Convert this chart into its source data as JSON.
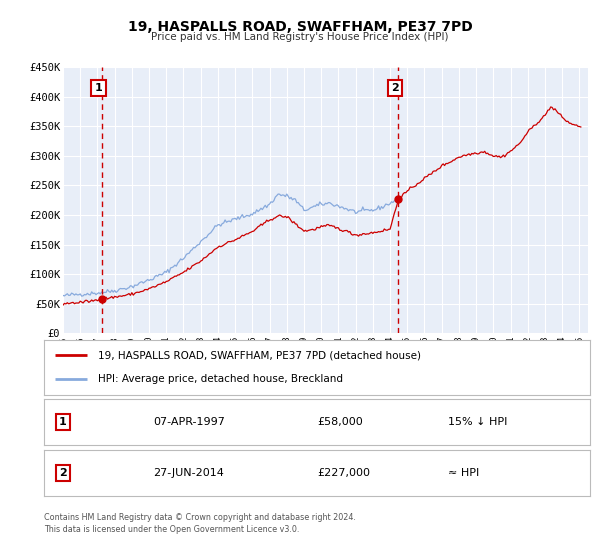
{
  "title": "19, HASPALLS ROAD, SWAFFHAM, PE37 7PD",
  "subtitle": "Price paid vs. HM Land Registry's House Price Index (HPI)",
  "ylim": [
    0,
    450000
  ],
  "yticks": [
    0,
    50000,
    100000,
    150000,
    200000,
    250000,
    300000,
    350000,
    400000,
    450000
  ],
  "ytick_labels": [
    "£0",
    "£50K",
    "£100K",
    "£150K",
    "£200K",
    "£250K",
    "£300K",
    "£350K",
    "£400K",
    "£450K"
  ],
  "xlim_start": 1995.0,
  "xlim_end": 2025.5,
  "xticks": [
    1995,
    1996,
    1997,
    1998,
    1999,
    2000,
    2001,
    2002,
    2003,
    2004,
    2005,
    2006,
    2007,
    2008,
    2009,
    2010,
    2011,
    2012,
    2013,
    2014,
    2015,
    2016,
    2017,
    2018,
    2019,
    2020,
    2021,
    2022,
    2023,
    2024,
    2025
  ],
  "bg_color": "#e8eef8",
  "fig_bg_color": "#ffffff",
  "grid_color": "#ffffff",
  "red_line_color": "#cc0000",
  "blue_line_color": "#88aadd",
  "transaction1_x": 1997.27,
  "transaction1_y": 58000,
  "transaction2_x": 2014.49,
  "transaction2_y": 227000,
  "legend_label_red": "19, HASPALLS ROAD, SWAFFHAM, PE37 7PD (detached house)",
  "legend_label_blue": "HPI: Average price, detached house, Breckland",
  "transaction1_date": "07-APR-1997",
  "transaction1_price": "£58,000",
  "transaction1_hpi": "15% ↓ HPI",
  "transaction2_date": "27-JUN-2014",
  "transaction2_price": "£227,000",
  "transaction2_hpi": "≈ HPI",
  "footer1": "Contains HM Land Registry data © Crown copyright and database right 2024.",
  "footer2": "This data is licensed under the Open Government Licence v3.0."
}
